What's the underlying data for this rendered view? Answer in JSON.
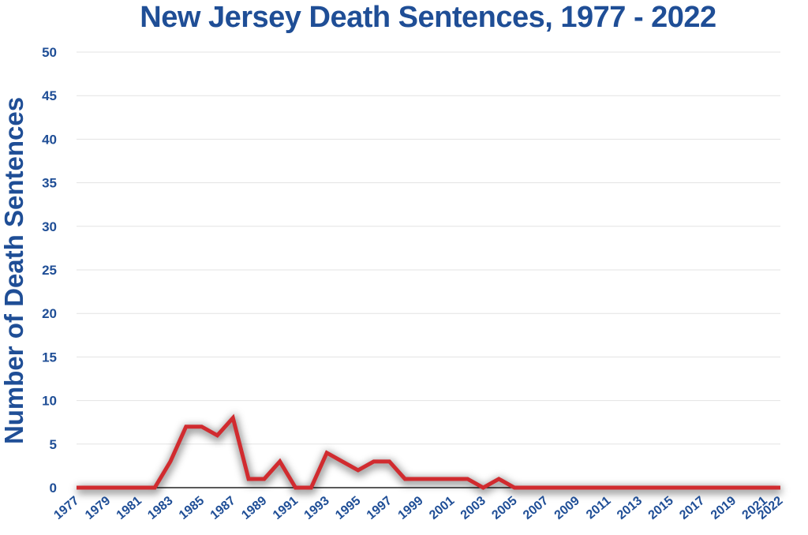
{
  "chart_data": {
    "type": "line",
    "title": "New Jersey Death Sentences, 1977 - 2022",
    "xlabel": "",
    "ylabel": "Number of Death Sentences",
    "ylim": [
      0,
      50
    ],
    "yticks": [
      0,
      5,
      10,
      15,
      20,
      25,
      30,
      35,
      40,
      45,
      50
    ],
    "xticks": [
      "1977",
      "1979",
      "1981",
      "1983",
      "1985",
      "1987",
      "1989",
      "1991",
      "1993",
      "1995",
      "1997",
      "1999",
      "2001",
      "2003",
      "2005",
      "2007",
      "2009",
      "2011",
      "2013",
      "2015",
      "2017",
      "2019",
      "2021",
      "2022"
    ],
    "grid": true,
    "legend": "none",
    "x": [
      1977,
      1978,
      1979,
      1980,
      1981,
      1982,
      1983,
      1984,
      1985,
      1986,
      1987,
      1988,
      1989,
      1990,
      1991,
      1992,
      1993,
      1994,
      1995,
      1996,
      1997,
      1998,
      1999,
      2000,
      2001,
      2002,
      2003,
      2004,
      2005,
      2006,
      2007,
      2008,
      2009,
      2010,
      2011,
      2012,
      2013,
      2014,
      2015,
      2016,
      2017,
      2018,
      2019,
      2020,
      2021,
      2022
    ],
    "series": [
      {
        "values": [
          0,
          0,
          0,
          0,
          0,
          0,
          3,
          7,
          7,
          6,
          8,
          1,
          1,
          3,
          0,
          0,
          4,
          3,
          2,
          3,
          3,
          1,
          1,
          1,
          1,
          1,
          0,
          1,
          0,
          0,
          0,
          0,
          0,
          0,
          0,
          0,
          0,
          0,
          0,
          0,
          0,
          0,
          0,
          0,
          0,
          0
        ],
        "color": "#d12b2f"
      }
    ],
    "colors": {
      "text": "#1f4e96",
      "grid": "#e3e3e3",
      "axis": "#222222",
      "line": "#d12b2f"
    }
  }
}
